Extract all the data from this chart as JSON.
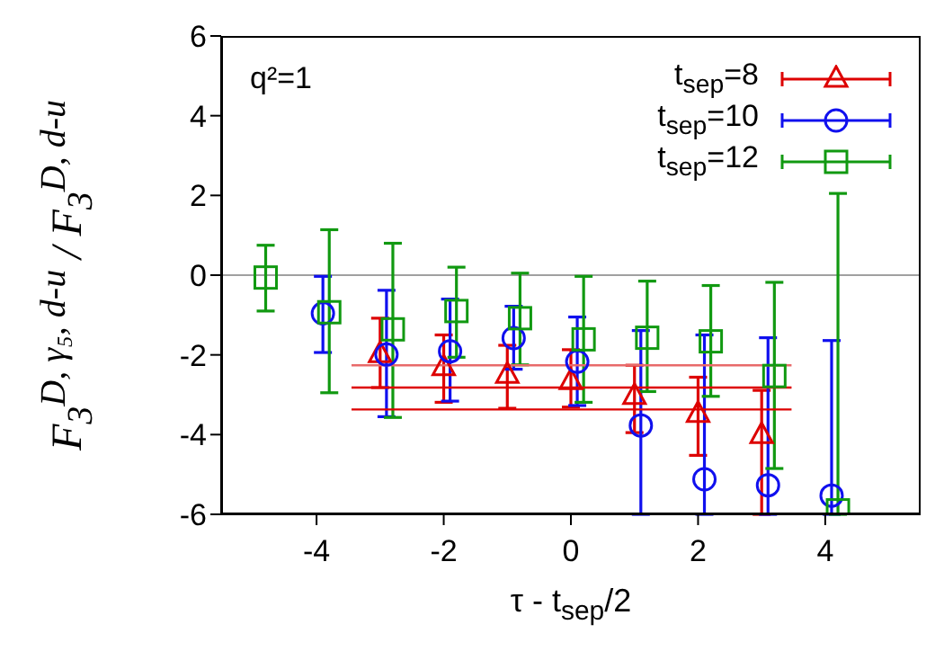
{
  "chart_data": {
    "type": "scatter",
    "xlabel": "τ - t$_{sep}$/2",
    "ylabel": "F$_{3}$$^{D, γ₅, d-u}$ / F$_{3}$$^{D, d-u}$",
    "annotations": [
      "q²=1"
    ],
    "xlim": [
      -5.5,
      5.5
    ],
    "xticks": [
      -4,
      -2,
      0,
      2,
      4
    ],
    "ylim": [
      -6,
      6
    ],
    "yticks": [
      -6,
      -4,
      -2,
      0,
      2,
      4,
      6
    ],
    "legend": "top right",
    "ref_lines": [
      {
        "axis": "y",
        "value": 0,
        "color": "#a0a0a0"
      }
    ],
    "series": [
      {
        "name": "t$_{sep}$=8",
        "color": "#dd0000",
        "marker": "triangle",
        "x": [
          -3,
          -2,
          -1,
          0,
          1,
          2,
          3
        ],
        "values": [
          -1.99,
          -2.32,
          -2.51,
          -2.67,
          -3.04,
          -3.49,
          -4.02
        ],
        "errors": [
          [
            -2.82,
            -1.08
          ],
          [
            -3.19,
            -1.5
          ],
          [
            -3.34,
            -1.76
          ],
          [
            -3.31,
            -1.87
          ],
          [
            -3.95,
            -2.26
          ],
          [
            -4.52,
            -2.56
          ],
          [
            -6,
            -2.89
          ]
        ]
      },
      {
        "name": "t$_{sep}$=10",
        "color": "#1010ee",
        "marker": "circle",
        "x": [
          -3.9,
          -2.9,
          -1.9,
          -0.9,
          0.1,
          1.1,
          2.1,
          3.1,
          4.1
        ],
        "values": [
          -0.96,
          -1.99,
          -1.91,
          -1.58,
          -2.17,
          -3.77,
          -5.12,
          -5.27,
          -5.53
        ],
        "errors": [
          [
            -1.94,
            -0.03
          ],
          [
            -3.55,
            -0.38
          ],
          [
            -3.16,
            -0.6
          ],
          [
            -2.36,
            -0.78
          ],
          [
            -3.27,
            -1.05
          ],
          [
            -6,
            -1.39
          ],
          [
            -6,
            -1.5
          ],
          [
            -6,
            -1.57
          ],
          [
            -6,
            -1.64
          ]
        ]
      },
      {
        "name": "t$_{sep}$=12",
        "color": "#119911",
        "marker": "square",
        "x": [
          -4.8,
          -3.8,
          -2.8,
          -1.8,
          -0.8,
          0.2,
          1.2,
          2.2,
          3.2,
          4.2
        ],
        "values": [
          -0.06,
          -0.93,
          -1.36,
          -0.9,
          -1.08,
          -1.61,
          -1.57,
          -1.66,
          -2.53,
          -5.9
        ],
        "errors": [
          [
            -0.9,
            0.75
          ],
          [
            -2.95,
            1.14
          ],
          [
            -3.57,
            0.8
          ],
          [
            -2.06,
            0.2
          ],
          [
            -2.25,
            0.05
          ],
          [
            -3.19,
            -0.03
          ],
          [
            -2.92,
            -0.15
          ],
          [
            -3.04,
            -0.26
          ],
          [
            -4.85,
            -0.18
          ],
          [
            -6,
            2.05
          ]
        ]
      },
      {
        "type": "line",
        "color": "#e86a6a",
        "x": [
          -3.45,
          3.47
        ],
        "values": [
          -2.26,
          -2.26
        ]
      },
      {
        "type": "line",
        "color": "#dd0000",
        "x": [
          -3.45,
          3.47
        ],
        "values": [
          -2.82,
          -2.82
        ]
      },
      {
        "type": "line",
        "color": "#dd0000",
        "x": [
          -3.45,
          3.47
        ],
        "values": [
          -3.37,
          -3.37
        ]
      }
    ]
  }
}
